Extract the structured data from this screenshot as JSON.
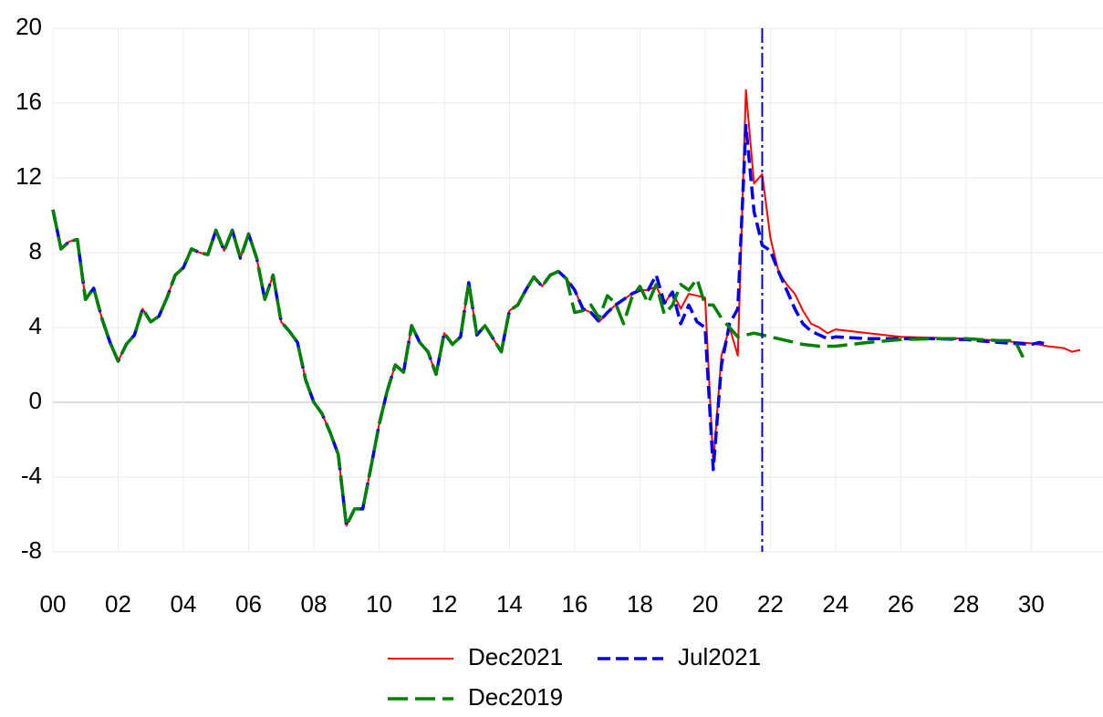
{
  "chart_data": {
    "type": "line",
    "xlim": [
      2000,
      2032.2
    ],
    "ylim": [
      -8,
      20
    ],
    "xticks": [
      {
        "value": 2000,
        "label": "00"
      },
      {
        "value": 2002,
        "label": "02"
      },
      {
        "value": 2004,
        "label": "04"
      },
      {
        "value": 2006,
        "label": "06"
      },
      {
        "value": 2008,
        "label": "08"
      },
      {
        "value": 2010,
        "label": "10"
      },
      {
        "value": 2012,
        "label": "12"
      },
      {
        "value": 2014,
        "label": "14"
      },
      {
        "value": 2016,
        "label": "16"
      },
      {
        "value": 2018,
        "label": "18"
      },
      {
        "value": 2020,
        "label": "20"
      },
      {
        "value": 2022,
        "label": "22"
      },
      {
        "value": 2024,
        "label": "24"
      },
      {
        "value": 2026,
        "label": "26"
      },
      {
        "value": 2028,
        "label": "28"
      },
      {
        "value": 2030,
        "label": "30"
      }
    ],
    "yticks": [
      -8,
      -4,
      0,
      4,
      8,
      12,
      16,
      20
    ],
    "grid": true,
    "vline": {
      "x": 2021.75,
      "color": "#0000cc"
    },
    "legend": "bottom",
    "series": [
      {
        "name": "Dec2021",
        "color": "#ff0000",
        "dash": "solid",
        "x": [
          2000,
          2000.25,
          2000.5,
          2000.75,
          2001,
          2001.25,
          2001.5,
          2001.75,
          2002,
          2002.25,
          2002.5,
          2002.75,
          2003,
          2003.25,
          2003.5,
          2003.75,
          2004,
          2004.25,
          2004.5,
          2004.75,
          2005,
          2005.25,
          2005.5,
          2005.75,
          2006,
          2006.25,
          2006.5,
          2006.75,
          2007,
          2007.25,
          2007.5,
          2007.75,
          2008,
          2008.25,
          2008.5,
          2008.75,
          2009,
          2009.25,
          2009.5,
          2009.75,
          2010,
          2010.25,
          2010.5,
          2010.75,
          2011,
          2011.25,
          2011.5,
          2011.75,
          2012,
          2012.25,
          2012.5,
          2012.75,
          2013,
          2013.25,
          2013.5,
          2013.75,
          2014,
          2014.25,
          2014.5,
          2014.75,
          2015,
          2015.25,
          2015.5,
          2015.75,
          2016,
          2016.25,
          2016.5,
          2016.75,
          2017,
          2017.25,
          2017.5,
          2017.75,
          2018,
          2018.25,
          2018.5,
          2018.75,
          2019,
          2019.25,
          2019.5,
          2019.75,
          2020,
          2020.25,
          2020.5,
          2020.75,
          2021,
          2021.25,
          2021.5,
          2021.75,
          2022,
          2022.25,
          2022.5,
          2022.75,
          2023,
          2023.25,
          2023.5,
          2023.75,
          2024,
          2025,
          2026,
          2027,
          2028,
          2029,
          2030,
          2030.5,
          2031,
          2031.25,
          2031.5
        ],
        "values": [
          10.3,
          8.2,
          8.6,
          8.7,
          5.5,
          6.1,
          4.5,
          3.2,
          2.2,
          3.1,
          3.6,
          5.0,
          4.3,
          4.6,
          5.6,
          6.8,
          7.2,
          8.2,
          8.0,
          7.9,
          9.2,
          8.1,
          9.2,
          7.7,
          9.0,
          7.7,
          5.5,
          6.8,
          4.3,
          3.8,
          3.2,
          1.2,
          0,
          -0.6,
          -1.6,
          -2.8,
          -6.6,
          -5.7,
          -5.7,
          -3.5,
          -1.2,
          0.6,
          2.0,
          1.6,
          4.1,
          3.2,
          2.7,
          1.5,
          3.7,
          3.1,
          3.5,
          6.4,
          3.6,
          4.1,
          3.4,
          2.7,
          4.9,
          5.2,
          6.0,
          6.7,
          6.2,
          6.8,
          7.0,
          6.6,
          6.0,
          5.0,
          4.8,
          4.3,
          4.8,
          5.2,
          5.5,
          5.8,
          6.0,
          6.0,
          6.2,
          5.3,
          5.9,
          5.0,
          5.8,
          5.7,
          5.6,
          -3.3,
          2.5,
          4.0,
          2.5,
          16.7,
          11.7,
          12.2,
          8.8,
          7.0,
          6.3,
          5.8,
          4.9,
          4.2,
          4.0,
          3.7,
          3.9,
          3.7,
          3.5,
          3.45,
          3.4,
          3.3,
          3.15,
          3.0,
          2.9,
          2.7,
          2.8
        ]
      },
      {
        "name": "Jul2021",
        "color": "#0000ee",
        "dash": "dashed",
        "x": [
          2000,
          2000.25,
          2000.5,
          2000.75,
          2001,
          2001.25,
          2001.5,
          2001.75,
          2002,
          2002.25,
          2002.5,
          2002.75,
          2003,
          2003.25,
          2003.5,
          2003.75,
          2004,
          2004.25,
          2004.5,
          2004.75,
          2005,
          2005.25,
          2005.5,
          2005.75,
          2006,
          2006.25,
          2006.5,
          2006.75,
          2007,
          2007.25,
          2007.5,
          2007.75,
          2008,
          2008.25,
          2008.5,
          2008.75,
          2009,
          2009.25,
          2009.5,
          2009.75,
          2010,
          2010.25,
          2010.5,
          2010.75,
          2011,
          2011.25,
          2011.5,
          2011.75,
          2012,
          2012.25,
          2012.5,
          2012.75,
          2013,
          2013.25,
          2013.5,
          2013.75,
          2014,
          2014.25,
          2014.5,
          2014.75,
          2015,
          2015.25,
          2015.5,
          2015.75,
          2016,
          2016.25,
          2016.5,
          2016.75,
          2017,
          2017.25,
          2017.5,
          2017.75,
          2018,
          2018.25,
          2018.5,
          2018.75,
          2019,
          2019.25,
          2019.5,
          2019.75,
          2020,
          2020.25,
          2020.5,
          2020.75,
          2021,
          2021.25,
          2021.5,
          2021.75,
          2022,
          2022.25,
          2022.5,
          2022.75,
          2023,
          2023.25,
          2023.5,
          2023.75,
          2024,
          2025,
          2026,
          2027,
          2028,
          2029,
          2030,
          2030.25,
          2030.5
        ],
        "values": [
          10.3,
          8.2,
          8.6,
          8.7,
          5.5,
          6.1,
          4.5,
          3.2,
          2.2,
          3.1,
          3.6,
          5.0,
          4.3,
          4.6,
          5.6,
          6.8,
          7.2,
          8.2,
          8.0,
          7.9,
          9.2,
          8.1,
          9.2,
          7.7,
          9.0,
          7.7,
          5.5,
          6.8,
          4.3,
          3.8,
          3.2,
          1.2,
          0,
          -0.6,
          -1.6,
          -2.8,
          -6.6,
          -5.7,
          -5.7,
          -3.5,
          -1.2,
          0.6,
          2.0,
          1.6,
          4.1,
          3.2,
          2.7,
          1.5,
          3.7,
          3.1,
          3.5,
          6.4,
          3.6,
          4.1,
          3.4,
          2.7,
          4.9,
          5.2,
          6.0,
          6.7,
          6.2,
          6.8,
          7.0,
          6.6,
          6.0,
          5.0,
          4.8,
          4.3,
          4.8,
          5.2,
          5.5,
          5.8,
          6.0,
          6.0,
          6.8,
          5.3,
          5.9,
          4.2,
          5.2,
          4.3,
          4.0,
          -3.6,
          2.0,
          4.2,
          5.0,
          14.8,
          10.2,
          8.4,
          8.1,
          7.0,
          6.0,
          5.0,
          4.2,
          3.8,
          3.6,
          3.4,
          3.5,
          3.4,
          3.4,
          3.4,
          3.35,
          3.2,
          3.1,
          3.2,
          3.1
        ]
      },
      {
        "name": "Dec2019",
        "color": "#008000",
        "dash": "longdash",
        "x": [
          2000,
          2000.25,
          2000.5,
          2000.75,
          2001,
          2001.25,
          2001.5,
          2001.75,
          2002,
          2002.25,
          2002.5,
          2002.75,
          2003,
          2003.25,
          2003.5,
          2003.75,
          2004,
          2004.25,
          2004.5,
          2004.75,
          2005,
          2005.25,
          2005.5,
          2005.75,
          2006,
          2006.25,
          2006.5,
          2006.75,
          2007,
          2007.25,
          2007.5,
          2007.75,
          2008,
          2008.25,
          2008.5,
          2008.75,
          2009,
          2009.25,
          2009.5,
          2009.75,
          2010,
          2010.25,
          2010.5,
          2010.75,
          2011,
          2011.25,
          2011.5,
          2011.75,
          2012,
          2012.25,
          2012.5,
          2012.75,
          2013,
          2013.25,
          2013.5,
          2013.75,
          2014,
          2014.25,
          2014.5,
          2014.75,
          2015,
          2015.25,
          2015.5,
          2015.75,
          2016,
          2016.25,
          2016.5,
          2016.75,
          2017,
          2017.25,
          2017.5,
          2017.75,
          2018,
          2018.25,
          2018.5,
          2018.75,
          2019,
          2019.25,
          2019.5,
          2019.75,
          2020,
          2020.25,
          2020.5,
          2020.75,
          2021,
          2021.5,
          2022,
          2023,
          2023.5,
          2024,
          2025,
          2026,
          2027,
          2028,
          2029,
          2029.5,
          2029.75
        ],
        "values": [
          10.3,
          8.2,
          8.6,
          8.7,
          5.5,
          6.1,
          4.5,
          3.2,
          2.2,
          3.1,
          3.6,
          5.0,
          4.3,
          4.6,
          5.6,
          6.8,
          7.2,
          8.2,
          8.0,
          7.9,
          9.2,
          8.1,
          9.2,
          7.7,
          9.0,
          7.7,
          5.5,
          6.8,
          4.3,
          3.8,
          3.2,
          1.2,
          0,
          -0.6,
          -1.6,
          -2.8,
          -6.6,
          -5.7,
          -5.7,
          -3.5,
          -1.2,
          0.6,
          2.0,
          1.6,
          4.1,
          3.2,
          2.7,
          1.5,
          3.7,
          3.1,
          3.5,
          6.4,
          3.6,
          4.1,
          3.4,
          2.7,
          4.9,
          5.2,
          6.0,
          6.7,
          6.2,
          6.8,
          7.0,
          6.6,
          4.8,
          4.9,
          5.2,
          4.5,
          5.7,
          5.3,
          4.2,
          5.6,
          6.2,
          5.3,
          6.3,
          4.7,
          5.2,
          6.3,
          6.0,
          6.6,
          5.2,
          5.2,
          4.5,
          4.0,
          3.5,
          3.7,
          3.5,
          3.1,
          3.0,
          3.0,
          3.2,
          3.35,
          3.4,
          3.4,
          3.3,
          3.3,
          2.4
        ]
      }
    ]
  }
}
